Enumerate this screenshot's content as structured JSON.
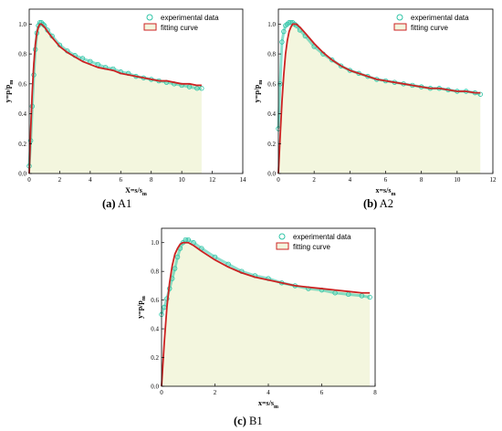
{
  "chart_data": [
    {
      "type": "scatter",
      "panel_label": "(a)",
      "panel_name": "A1",
      "xlabel": "X=s/s",
      "xlabel_sub": "m",
      "ylabel": "y=p/p",
      "ylabel_sub": "m",
      "xlim": [
        0,
        14
      ],
      "ylim": [
        0.0,
        1.1
      ],
      "xticks": [
        0,
        2,
        4,
        6,
        8,
        10,
        12,
        14
      ],
      "yticks": [
        0.0,
        0.2,
        0.4,
        0.6,
        0.8,
        1.0
      ],
      "grid": false,
      "legend_position": "top-right",
      "series": [
        {
          "name": "experimental data",
          "kind": "scatter",
          "color": "#2ec4a6",
          "x": [
            0,
            0.1,
            0.2,
            0.3,
            0.4,
            0.5,
            0.6,
            0.7,
            0.8,
            0.9,
            1.0,
            1.2,
            1.5,
            2,
            2.5,
            3,
            3.5,
            4,
            4.5,
            5,
            5.5,
            6,
            6.5,
            7,
            7.5,
            8,
            8.5,
            9,
            9.5,
            10,
            10.5,
            11,
            11.3
          ],
          "y": [
            0.05,
            0.22,
            0.45,
            0.66,
            0.83,
            0.94,
            0.99,
            1.01,
            1.01,
            1.0,
            0.99,
            0.96,
            0.92,
            0.86,
            0.82,
            0.79,
            0.77,
            0.75,
            0.73,
            0.71,
            0.7,
            0.68,
            0.67,
            0.65,
            0.64,
            0.63,
            0.62,
            0.61,
            0.6,
            0.59,
            0.58,
            0.57,
            0.57
          ]
        },
        {
          "name": "fitting curve",
          "kind": "line",
          "color": "#cc2222",
          "x": [
            0,
            0.1,
            0.2,
            0.3,
            0.4,
            0.5,
            0.6,
            0.7,
            0.8,
            0.9,
            1.0,
            1.2,
            1.5,
            2,
            2.5,
            3,
            3.5,
            4,
            4.5,
            5,
            5.5,
            6,
            6.5,
            7,
            7.5,
            8,
            8.5,
            9,
            9.5,
            10,
            10.5,
            11,
            11.3
          ],
          "y": [
            0.0,
            0.3,
            0.55,
            0.73,
            0.86,
            0.94,
            0.98,
            1.0,
            1.0,
            0.99,
            0.98,
            0.95,
            0.91,
            0.85,
            0.81,
            0.78,
            0.75,
            0.73,
            0.71,
            0.7,
            0.69,
            0.67,
            0.66,
            0.65,
            0.64,
            0.63,
            0.62,
            0.62,
            0.61,
            0.6,
            0.6,
            0.59,
            0.59
          ]
        }
      ]
    },
    {
      "type": "scatter",
      "panel_label": "(b)",
      "panel_name": "A2",
      "xlabel": "x=s/s",
      "xlabel_sub": "m",
      "ylabel": "y=p/p",
      "ylabel_sub": "m",
      "xlim": [
        0,
        12
      ],
      "ylim": [
        0.0,
        1.1
      ],
      "xticks": [
        0,
        2,
        4,
        6,
        8,
        10,
        12
      ],
      "yticks": [
        0.0,
        0.2,
        0.4,
        0.6,
        0.8,
        1.0
      ],
      "grid": false,
      "legend_position": "top-right",
      "series": [
        {
          "name": "experimental data",
          "kind": "scatter",
          "color": "#2ec4a6",
          "x": [
            0,
            0.1,
            0.2,
            0.3,
            0.4,
            0.5,
            0.6,
            0.7,
            0.8,
            0.9,
            1.0,
            1.2,
            1.5,
            2,
            2.5,
            3,
            3.5,
            4,
            4.5,
            5,
            5.5,
            6,
            6.5,
            7,
            7.5,
            8,
            8.5,
            9,
            9.5,
            10,
            10.5,
            11,
            11.3
          ],
          "y": [
            0.3,
            0.6,
            0.88,
            0.95,
            0.99,
            1.0,
            1.01,
            1.01,
            1.01,
            1.0,
            0.99,
            0.96,
            0.92,
            0.85,
            0.8,
            0.76,
            0.72,
            0.69,
            0.67,
            0.65,
            0.63,
            0.62,
            0.61,
            0.6,
            0.59,
            0.58,
            0.57,
            0.57,
            0.56,
            0.55,
            0.55,
            0.54,
            0.53
          ]
        },
        {
          "name": "fitting curve",
          "kind": "line",
          "color": "#cc2222",
          "x": [
            0,
            0.1,
            0.2,
            0.3,
            0.4,
            0.5,
            0.6,
            0.7,
            0.8,
            0.9,
            1.0,
            1.2,
            1.5,
            2,
            2.5,
            3,
            3.5,
            4,
            4.5,
            5,
            5.5,
            6,
            6.5,
            7,
            7.5,
            8,
            8.5,
            9,
            9.5,
            10,
            10.5,
            11,
            11.3
          ],
          "y": [
            0.0,
            0.25,
            0.48,
            0.66,
            0.8,
            0.89,
            0.95,
            0.98,
            1.0,
            1.0,
            1.0,
            0.98,
            0.94,
            0.87,
            0.81,
            0.76,
            0.72,
            0.69,
            0.67,
            0.65,
            0.63,
            0.62,
            0.61,
            0.6,
            0.59,
            0.58,
            0.57,
            0.57,
            0.56,
            0.55,
            0.55,
            0.54,
            0.54
          ]
        }
      ]
    },
    {
      "type": "scatter",
      "panel_label": "(c)",
      "panel_name": "B1",
      "xlabel": "x=s/s",
      "xlabel_sub": "m",
      "ylabel": "y=p/p",
      "ylabel_sub": "m",
      "xlim": [
        0,
        8
      ],
      "ylim": [
        0.0,
        1.1
      ],
      "xticks": [
        0,
        2,
        4,
        6,
        8
      ],
      "yticks": [
        0.0,
        0.2,
        0.4,
        0.6,
        0.8,
        1.0
      ],
      "grid": false,
      "legend_position": "top-right",
      "series": [
        {
          "name": "experimental data",
          "kind": "scatter",
          "color": "#2ec4a6",
          "x": [
            0,
            0.1,
            0.2,
            0.3,
            0.4,
            0.5,
            0.6,
            0.7,
            0.8,
            0.9,
            1.0,
            1.2,
            1.5,
            2,
            2.5,
            3,
            3.5,
            4,
            4.5,
            5,
            5.5,
            6,
            6.5,
            7,
            7.5,
            7.8
          ],
          "y": [
            0.5,
            0.55,
            0.61,
            0.68,
            0.75,
            0.82,
            0.9,
            0.96,
            1.0,
            1.02,
            1.02,
            1.0,
            0.96,
            0.9,
            0.85,
            0.8,
            0.77,
            0.75,
            0.72,
            0.7,
            0.68,
            0.67,
            0.65,
            0.64,
            0.63,
            0.62
          ]
        },
        {
          "name": "fitting curve",
          "kind": "line",
          "color": "#cc2222",
          "x": [
            0,
            0.1,
            0.2,
            0.3,
            0.4,
            0.5,
            0.6,
            0.7,
            0.8,
            0.9,
            1.0,
            1.2,
            1.5,
            2,
            2.5,
            3,
            3.5,
            4,
            4.5,
            5,
            5.5,
            6,
            6.5,
            7,
            7.5,
            7.8
          ],
          "y": [
            0.0,
            0.3,
            0.55,
            0.72,
            0.84,
            0.92,
            0.96,
            0.99,
            1.0,
            1.0,
            1.0,
            0.98,
            0.94,
            0.88,
            0.83,
            0.79,
            0.76,
            0.74,
            0.72,
            0.7,
            0.69,
            0.68,
            0.67,
            0.66,
            0.65,
            0.65
          ]
        }
      ]
    }
  ],
  "fill_color": "#f3f6de",
  "axis_color": "#000000"
}
